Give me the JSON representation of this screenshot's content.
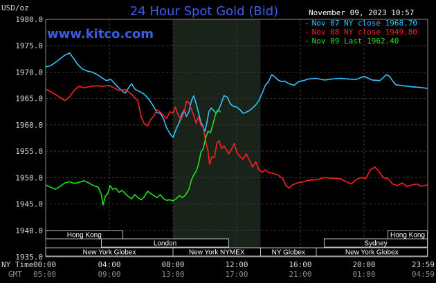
{
  "chart_data": {
    "type": "line",
    "title": "24 Hour Spot Gold (Bid)",
    "watermark": "www.kitco.com",
    "timestamp": "November 09, 2023 10:57",
    "y_unit": "USD/oz",
    "ylim": [
      1935,
      1980
    ],
    "y_ticks": [
      "1980.0",
      "1975.0",
      "1970.0",
      "1965.0",
      "1960.0",
      "1955.0",
      "1950.0",
      "1945.0",
      "1940.0",
      "1935.0"
    ],
    "x_row_label": "NY Time",
    "x_row_label2": "GMT",
    "x_ticks_ny": [
      "00:00",
      "04:00",
      "08:00",
      "12:00",
      "16:00",
      "20:00",
      "23:59"
    ],
    "x_ticks_gmt": [
      "05:00",
      "09:00",
      "13:00",
      "17:00",
      "21:00",
      "01:00",
      "04:59"
    ],
    "grid": true,
    "legend_position": "top-right",
    "shaded_region": {
      "start_hour": 8.0,
      "end_hour": 13.5
    },
    "sessions": [
      {
        "label": "Hong Kong",
        "row": 0,
        "start": 0.0,
        "end": 4.85
      },
      {
        "label": "Hong Kong",
        "row": 0,
        "start": 21.5,
        "end": 23.98
      },
      {
        "label": "London",
        "row": 1,
        "start": 3.5,
        "end": 11.5
      },
      {
        "label": "Sydney",
        "row": 1,
        "start": 17.5,
        "end": 23.98
      },
      {
        "label": "New York Globex",
        "row": 2,
        "start": 0.0,
        "end": 8.0
      },
      {
        "label": "New York NYMEX",
        "row": 2,
        "start": 8.0,
        "end": 13.5
      },
      {
        "label": "NY Globex",
        "row": 2,
        "start": 13.5,
        "end": 17.0
      },
      {
        "label": "New York Globex",
        "row": 2,
        "start": 17.0,
        "end": 23.98
      }
    ],
    "series": [
      {
        "name": "Nov 07 NY close 1968.70",
        "color": "#33c3ff",
        "points": [
          [
            0.0,
            1971.0
          ],
          [
            0.3,
            1971.2
          ],
          [
            0.6,
            1971.8
          ],
          [
            0.9,
            1972.5
          ],
          [
            1.2,
            1973.2
          ],
          [
            1.5,
            1973.6
          ],
          [
            1.75,
            1972.6
          ],
          [
            2.0,
            1971.5
          ],
          [
            2.3,
            1970.6
          ],
          [
            2.6,
            1970.2
          ],
          [
            2.9,
            1970.0
          ],
          [
            3.2,
            1969.6
          ],
          [
            3.5,
            1969.0
          ],
          [
            3.8,
            1968.4
          ],
          [
            4.1,
            1968.6
          ],
          [
            4.4,
            1967.6
          ],
          [
            4.7,
            1966.7
          ],
          [
            5.0,
            1966.0
          ],
          [
            5.2,
            1967.0
          ],
          [
            5.4,
            1967.8
          ],
          [
            5.6,
            1966.8
          ],
          [
            5.9,
            1966.3
          ],
          [
            6.2,
            1965.8
          ],
          [
            6.5,
            1964.8
          ],
          [
            6.8,
            1963.4
          ],
          [
            7.0,
            1962.3
          ],
          [
            7.2,
            1962.2
          ],
          [
            7.4,
            1961.2
          ],
          [
            7.6,
            1959.4
          ],
          [
            7.8,
            1958.4
          ],
          [
            8.0,
            1957.6
          ],
          [
            8.2,
            1959.2
          ],
          [
            8.4,
            1960.5
          ],
          [
            8.55,
            1962.0
          ],
          [
            8.7,
            1962.8
          ],
          [
            8.85,
            1961.6
          ],
          [
            9.0,
            1962.5
          ],
          [
            9.15,
            1964.5
          ],
          [
            9.3,
            1965.5
          ],
          [
            9.45,
            1964.0
          ],
          [
            9.6,
            1962.3
          ],
          [
            9.75,
            1960.5
          ],
          [
            9.9,
            1959.6
          ],
          [
            10.0,
            1958.8
          ],
          [
            10.1,
            1960.0
          ],
          [
            10.25,
            1962.5
          ],
          [
            10.4,
            1963.2
          ],
          [
            10.55,
            1962.7
          ],
          [
            10.7,
            1962.2
          ],
          [
            10.85,
            1962.8
          ],
          [
            11.0,
            1963.8
          ],
          [
            11.2,
            1965.5
          ],
          [
            11.4,
            1965.3
          ],
          [
            11.6,
            1964.0
          ],
          [
            11.8,
            1963.5
          ],
          [
            12.0,
            1963.4
          ],
          [
            12.2,
            1962.9
          ],
          [
            12.4,
            1962.2
          ],
          [
            12.6,
            1962.4
          ],
          [
            12.8,
            1962.7
          ],
          [
            13.0,
            1963.2
          ],
          [
            13.2,
            1963.8
          ],
          [
            13.4,
            1964.6
          ],
          [
            13.6,
            1966.0
          ],
          [
            13.8,
            1967.5
          ],
          [
            14.0,
            1968.2
          ],
          [
            14.2,
            1969.5
          ],
          [
            14.4,
            1969.1
          ],
          [
            14.6,
            1968.5
          ],
          [
            14.8,
            1968.2
          ],
          [
            15.0,
            1968.3
          ],
          [
            15.3,
            1967.8
          ],
          [
            15.6,
            1967.5
          ],
          [
            15.9,
            1968.2
          ],
          [
            16.2,
            1968.4
          ],
          [
            16.5,
            1968.7
          ],
          [
            17.0,
            1968.8
          ],
          [
            17.5,
            1968.5
          ],
          [
            18.0,
            1968.7
          ],
          [
            18.5,
            1968.8
          ],
          [
            19.0,
            1968.7
          ],
          [
            19.5,
            1968.6
          ],
          [
            20.0,
            1969.2
          ],
          [
            20.5,
            1968.5
          ],
          [
            21.0,
            1968.4
          ],
          [
            21.4,
            1969.5
          ],
          [
            21.6,
            1969.2
          ],
          [
            21.8,
            1968.3
          ],
          [
            22.0,
            1967.6
          ],
          [
            22.5,
            1967.4
          ],
          [
            23.0,
            1967.2
          ],
          [
            23.5,
            1967.1
          ],
          [
            23.98,
            1966.9
          ]
        ]
      },
      {
        "name": "Nov 08 NY close 1949.80",
        "color": "#ff2020",
        "points": [
          [
            0.0,
            1966.8
          ],
          [
            0.3,
            1966.3
          ],
          [
            0.6,
            1965.8
          ],
          [
            0.9,
            1965.2
          ],
          [
            1.2,
            1964.6
          ],
          [
            1.5,
            1965.3
          ],
          [
            1.8,
            1966.6
          ],
          [
            2.1,
            1967.3
          ],
          [
            2.4,
            1967.0
          ],
          [
            2.8,
            1967.3
          ],
          [
            3.2,
            1967.4
          ],
          [
            3.6,
            1967.3
          ],
          [
            4.0,
            1967.5
          ],
          [
            4.3,
            1967.0
          ],
          [
            4.6,
            1966.5
          ],
          [
            5.0,
            1966.7
          ],
          [
            5.4,
            1965.8
          ],
          [
            5.8,
            1964.5
          ],
          [
            6.0,
            1961.5
          ],
          [
            6.2,
            1960.2
          ],
          [
            6.4,
            1959.8
          ],
          [
            6.6,
            1961.0
          ],
          [
            6.8,
            1961.7
          ],
          [
            7.0,
            1962.8
          ],
          [
            7.2,
            1962.4
          ],
          [
            7.4,
            1961.8
          ],
          [
            7.6,
            1961.2
          ],
          [
            7.8,
            1962.5
          ],
          [
            8.0,
            1962.2
          ],
          [
            8.15,
            1963.4
          ],
          [
            8.3,
            1962.0
          ],
          [
            8.5,
            1961.0
          ],
          [
            8.7,
            1962.5
          ],
          [
            8.85,
            1964.5
          ],
          [
            9.0,
            1964.2
          ],
          [
            9.15,
            1963.0
          ],
          [
            9.3,
            1961.8
          ],
          [
            9.45,
            1960.3
          ],
          [
            9.6,
            1961.5
          ],
          [
            9.75,
            1960.0
          ],
          [
            9.9,
            1959.5
          ],
          [
            10.05,
            1957.0
          ],
          [
            10.2,
            1955.0
          ],
          [
            10.3,
            1952.5
          ],
          [
            10.45,
            1954.0
          ],
          [
            10.6,
            1953.8
          ],
          [
            10.75,
            1956.5
          ],
          [
            10.9,
            1957.0
          ],
          [
            11.05,
            1955.5
          ],
          [
            11.2,
            1956.0
          ],
          [
            11.35,
            1955.3
          ],
          [
            11.5,
            1954.5
          ],
          [
            11.7,
            1955.5
          ],
          [
            11.85,
            1956.5
          ],
          [
            12.0,
            1954.8
          ],
          [
            12.2,
            1954.0
          ],
          [
            12.4,
            1953.5
          ],
          [
            12.6,
            1954.5
          ],
          [
            12.8,
            1953.3
          ],
          [
            13.0,
            1952.0
          ],
          [
            13.2,
            1953.0
          ],
          [
            13.4,
            1951.5
          ],
          [
            13.6,
            1951.0
          ],
          [
            13.8,
            1951.5
          ],
          [
            14.0,
            1951.0
          ],
          [
            14.3,
            1950.8
          ],
          [
            14.6,
            1950.5
          ],
          [
            14.9,
            1949.8
          ],
          [
            15.1,
            1948.5
          ],
          [
            15.3,
            1948.0
          ],
          [
            15.5,
            1948.6
          ],
          [
            15.8,
            1949.0
          ],
          [
            16.2,
            1949.2
          ],
          [
            16.5,
            1949.5
          ],
          [
            17.0,
            1949.6
          ],
          [
            17.5,
            1950.0
          ],
          [
            18.0,
            1949.9
          ],
          [
            18.5,
            1949.8
          ],
          [
            18.9,
            1949.2
          ],
          [
            19.2,
            1948.8
          ],
          [
            19.5,
            1949.6
          ],
          [
            19.8,
            1950.0
          ],
          [
            20.1,
            1949.8
          ],
          [
            20.4,
            1951.5
          ],
          [
            20.7,
            1952.0
          ],
          [
            20.9,
            1951.3
          ],
          [
            21.2,
            1950.0
          ],
          [
            21.5,
            1949.8
          ],
          [
            21.8,
            1948.8
          ],
          [
            22.1,
            1948.5
          ],
          [
            22.4,
            1949.0
          ],
          [
            22.7,
            1948.3
          ],
          [
            23.0,
            1948.6
          ],
          [
            23.3,
            1948.8
          ],
          [
            23.6,
            1948.4
          ],
          [
            23.98,
            1948.6
          ]
        ]
      },
      {
        "name": "Nov 09 Last 1962.40",
        "color": "#22e022",
        "points": [
          [
            0.0,
            1948.6
          ],
          [
            0.3,
            1948.2
          ],
          [
            0.6,
            1947.8
          ],
          [
            0.9,
            1948.3
          ],
          [
            1.2,
            1949.0
          ],
          [
            1.5,
            1949.2
          ],
          [
            1.8,
            1948.9
          ],
          [
            2.1,
            1949.1
          ],
          [
            2.4,
            1949.4
          ],
          [
            2.7,
            1949.0
          ],
          [
            3.0,
            1948.5
          ],
          [
            3.3,
            1948.2
          ],
          [
            3.5,
            1946.8
          ],
          [
            3.6,
            1944.8
          ],
          [
            3.75,
            1946.5
          ],
          [
            3.9,
            1947.0
          ],
          [
            4.05,
            1948.5
          ],
          [
            4.2,
            1947.8
          ],
          [
            4.4,
            1948.0
          ],
          [
            4.6,
            1947.2
          ],
          [
            4.8,
            1947.6
          ],
          [
            5.0,
            1947.0
          ],
          [
            5.2,
            1946.4
          ],
          [
            5.4,
            1946.0
          ],
          [
            5.6,
            1946.8
          ],
          [
            5.8,
            1946.2
          ],
          [
            6.0,
            1945.8
          ],
          [
            6.2,
            1946.4
          ],
          [
            6.4,
            1947.4
          ],
          [
            6.6,
            1947.0
          ],
          [
            6.8,
            1946.6
          ],
          [
            7.0,
            1946.2
          ],
          [
            7.2,
            1946.8
          ],
          [
            7.4,
            1946.0
          ],
          [
            7.6,
            1945.7
          ],
          [
            7.8,
            1945.8
          ],
          [
            8.0,
            1945.6
          ],
          [
            8.2,
            1946.0
          ],
          [
            8.4,
            1946.6
          ],
          [
            8.6,
            1946.2
          ],
          [
            8.8,
            1946.8
          ],
          [
            9.0,
            1947.8
          ],
          [
            9.15,
            1949.5
          ],
          [
            9.3,
            1950.5
          ],
          [
            9.45,
            1951.2
          ],
          [
            9.6,
            1952.5
          ],
          [
            9.75,
            1954.8
          ],
          [
            9.9,
            1955.5
          ],
          [
            10.05,
            1957.5
          ],
          [
            10.2,
            1958.8
          ],
          [
            10.35,
            1958.5
          ],
          [
            10.5,
            1960.0
          ],
          [
            10.65,
            1961.8
          ],
          [
            10.8,
            1962.8
          ],
          [
            11.0,
            1962.4
          ]
        ]
      }
    ]
  }
}
